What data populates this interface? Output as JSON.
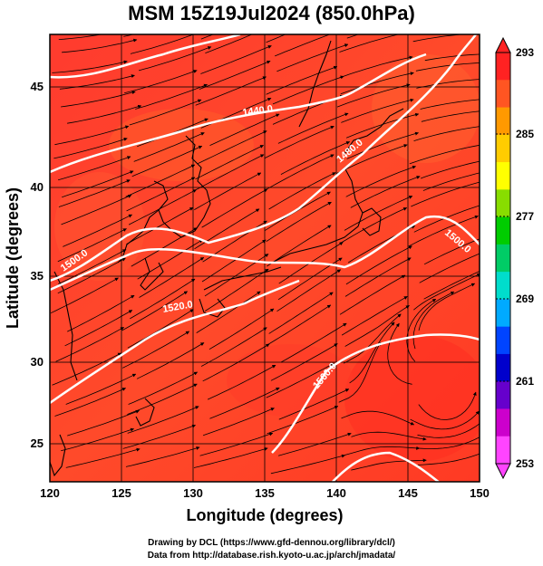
{
  "title": "MSM 15Z19Jul2024 (850.0hPa)",
  "x_axis": {
    "label": "Longitude (degrees)",
    "range": [
      120,
      150
    ],
    "ticks": [
      "120",
      "125",
      "130",
      "135",
      "140",
      "145",
      "150"
    ]
  },
  "y_axis": {
    "label": "Latitude (degrees)",
    "range": [
      22.4,
      47.6
    ],
    "ticks": [
      "25",
      "30",
      "35",
      "40",
      "45"
    ]
  },
  "colorbar": {
    "min": 253,
    "max": 293,
    "labels": [
      "293",
      "285",
      "277",
      "269",
      "261",
      "253"
    ],
    "colors": [
      "#ff44ff",
      "#cc00cc",
      "#6600cc",
      "#0000cc",
      "#0044ff",
      "#00aaff",
      "#00ddcc",
      "#00cc66",
      "#00cc00",
      "#88dd00",
      "#ffff00",
      "#ffcc00",
      "#ff9900",
      "#ff5522",
      "#ff2222"
    ]
  },
  "contours": {
    "color": "#ffffff",
    "labels": [
      "1440.0",
      "1480.0",
      "1500.0",
      "1500.0",
      "1520.0",
      "1560.0"
    ]
  },
  "credits": {
    "line1": "Drawing by DCL (https://www.gfd-dennou.org/library/dcl/)",
    "line2": "Data from http://database.rish.kyoto-u.ac.jp/arch/jmadata/"
  }
}
